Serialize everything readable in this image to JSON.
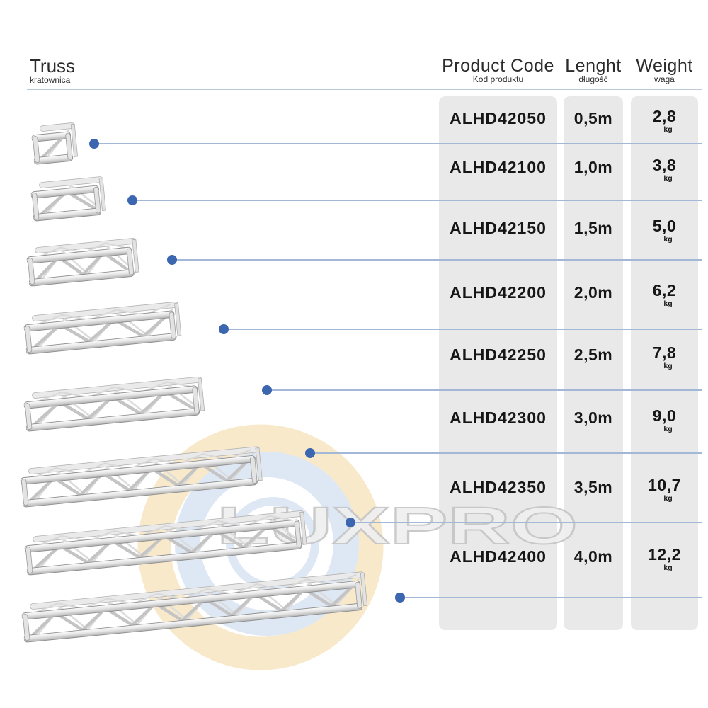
{
  "sheet_title": {
    "title": "Truss",
    "subtitle": "kratownica"
  },
  "table_header": {
    "product_code": {
      "title": "Product Code",
      "subtitle": "Kod produktu"
    },
    "length": {
      "title": "Lenght",
      "subtitle": "długość"
    },
    "weight": {
      "title": "Weight",
      "subtitle": "waga"
    }
  },
  "rows": [
    {
      "code": "ALHD42050",
      "length": "0,5m",
      "weight": "2,8",
      "unit": "kg"
    },
    {
      "code": "ALHD42100",
      "length": "1,0m",
      "weight": "3,8",
      "unit": "kg"
    },
    {
      "code": "ALHD42150",
      "length": "1,5m",
      "weight": "5,0",
      "unit": "kg"
    },
    {
      "code": "ALHD42200",
      "length": "2,0m",
      "weight": "6,2",
      "unit": "kg"
    },
    {
      "code": "ALHD42250",
      "length": "2,5m",
      "weight": "7,8",
      "unit": "kg"
    },
    {
      "code": "ALHD42300",
      "length": "3,0m",
      "weight": "9,0",
      "unit": "kg"
    },
    {
      "code": "ALHD42350",
      "length": "3,5m",
      "weight": "10,7",
      "unit": "kg"
    },
    {
      "code": "ALHD42400",
      "length": "4,0m",
      "weight": "12,2",
      "unit": "kg"
    }
  ],
  "watermark": {
    "text": "LUXPRO"
  },
  "colors": {
    "dot_blue": "#3c67b0",
    "leader_line": "#a3b8d6",
    "column_bg": "#e9e9e9",
    "watermark_ring_peach": "#f8e9cb",
    "watermark_ring_blue": "#dee7f4",
    "watermark_letters": "#efefef",
    "text_dark": "#161616"
  }
}
